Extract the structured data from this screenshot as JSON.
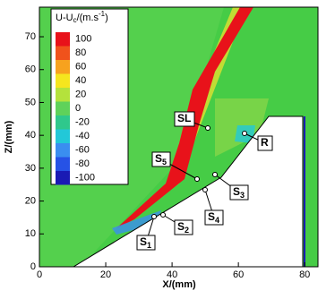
{
  "chart_data": {
    "type": "contour",
    "xlabel": "X/(mm)",
    "ylabel": "Z/(mm)",
    "xlim": [
      0,
      84
    ],
    "ylim": [
      0,
      79
    ],
    "xticks": [
      0,
      20,
      40,
      60,
      80
    ],
    "yticks": [
      0,
      10,
      20,
      30,
      40,
      50,
      60,
      70
    ],
    "legend_title": [
      "U-U",
      "c",
      "/(m.s",
      "-1",
      ")"
    ],
    "colorbar": {
      "levels": [
        100,
        80,
        60,
        40,
        20,
        0,
        -20,
        -40,
        -60,
        -80,
        -100
      ],
      "colors": [
        "#e8121a",
        "#f0521c",
        "#f7a21e",
        "#f5e61e",
        "#b4e23c",
        "#5fd25a",
        "#2fc88c",
        "#22c8d8",
        "#3a8ef0",
        "#2652e6",
        "#1a1ab4"
      ]
    },
    "annotations": [
      {
        "text": "SL"
      },
      {
        "text": "S",
        "sub": "5"
      },
      {
        "text": "S",
        "sub": "3"
      },
      {
        "text": "S",
        "sub": "4"
      },
      {
        "text": "S",
        "sub": "2"
      },
      {
        "text": "S",
        "sub": "1"
      },
      {
        "text": "R"
      }
    ]
  }
}
